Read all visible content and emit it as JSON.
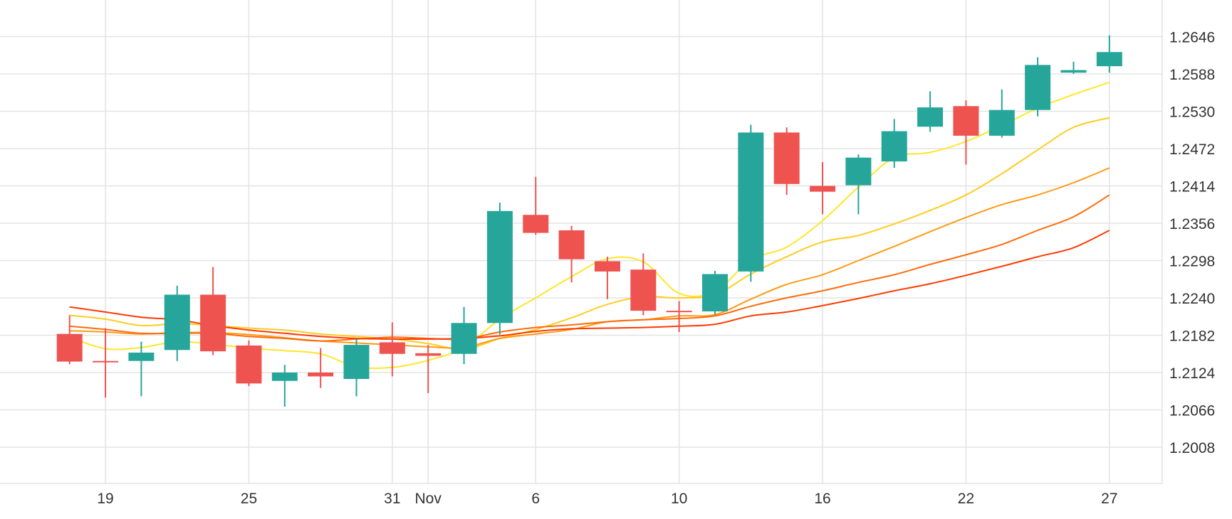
{
  "chart_data": {
    "type": "candlestick",
    "title": "",
    "xlabel": "",
    "ylabel": "",
    "ylim": [
      1.195,
      1.27
    ],
    "grid": true,
    "y_ticks": [
      "1.2646",
      "1.2588",
      "1.2530",
      "1.2472",
      "1.2414",
      "1.2356",
      "1.2298",
      "1.2240",
      "1.2182",
      "1.2124",
      "1.2066",
      "1.2008"
    ],
    "x_ticks": [
      {
        "label": "19",
        "index": 1
      },
      {
        "label": "25",
        "index": 5
      },
      {
        "label": "31",
        "index": 9
      },
      {
        "label": "Nov",
        "index": 10
      },
      {
        "label": "6",
        "index": 13
      },
      {
        "label": "10",
        "index": 17
      },
      {
        "label": "16",
        "index": 21
      },
      {
        "label": "22",
        "index": 25
      },
      {
        "label": "27",
        "index": 29
      }
    ],
    "candles": [
      {
        "o": 1.2184,
        "h": 1.2213,
        "l": 1.2137,
        "c": 1.2141
      },
      {
        "o": 1.2142,
        "h": 1.2193,
        "l": 1.2085,
        "c": 1.214
      },
      {
        "o": 1.2142,
        "h": 1.2172,
        "l": 1.2087,
        "c": 1.2155
      },
      {
        "o": 1.2159,
        "h": 1.2259,
        "l": 1.2142,
        "c": 1.2245
      },
      {
        "o": 1.2245,
        "h": 1.2288,
        "l": 1.2151,
        "c": 1.2157
      },
      {
        "o": 1.2166,
        "h": 1.2174,
        "l": 1.2103,
        "c": 1.2107
      },
      {
        "o": 1.2111,
        "h": 1.2136,
        "l": 1.2071,
        "c": 1.2124
      },
      {
        "o": 1.2124,
        "h": 1.2162,
        "l": 1.21,
        "c": 1.2118
      },
      {
        "o": 1.2114,
        "h": 1.2177,
        "l": 1.2087,
        "c": 1.2167
      },
      {
        "o": 1.2171,
        "h": 1.2202,
        "l": 1.2118,
        "c": 1.2153
      },
      {
        "o": 1.2154,
        "h": 1.2167,
        "l": 1.2092,
        "c": 1.215
      },
      {
        "o": 1.2153,
        "h": 1.2226,
        "l": 1.2137,
        "c": 1.2201
      },
      {
        "o": 1.2201,
        "h": 1.2388,
        "l": 1.2183,
        "c": 1.2375
      },
      {
        "o": 1.2369,
        "h": 1.2428,
        "l": 1.2338,
        "c": 1.2341
      },
      {
        "o": 1.2345,
        "h": 1.2352,
        "l": 1.2264,
        "c": 1.23
      },
      {
        "o": 1.2297,
        "h": 1.2304,
        "l": 1.2238,
        "c": 1.2281
      },
      {
        "o": 1.2284,
        "h": 1.2309,
        "l": 1.2213,
        "c": 1.222
      },
      {
        "o": 1.222,
        "h": 1.2235,
        "l": 1.2187,
        "c": 1.2218
      },
      {
        "o": 1.2219,
        "h": 1.2282,
        "l": 1.2214,
        "c": 1.2277
      },
      {
        "o": 1.2281,
        "h": 1.2509,
        "l": 1.2265,
        "c": 1.2497
      },
      {
        "o": 1.2497,
        "h": 1.2505,
        "l": 1.24,
        "c": 1.2417
      },
      {
        "o": 1.2414,
        "h": 1.2451,
        "l": 1.237,
        "c": 1.2405
      },
      {
        "o": 1.2415,
        "h": 1.2463,
        "l": 1.237,
        "c": 1.2458
      },
      {
        "o": 1.2452,
        "h": 1.2518,
        "l": 1.2442,
        "c": 1.2499
      },
      {
        "o": 1.2506,
        "h": 1.2561,
        "l": 1.2498,
        "c": 1.2536
      },
      {
        "o": 1.2538,
        "h": 1.2547,
        "l": 1.2447,
        "c": 1.2492
      },
      {
        "o": 1.2492,
        "h": 1.2564,
        "l": 1.2489,
        "c": 1.2532
      },
      {
        "o": 1.2532,
        "h": 1.2614,
        "l": 1.2522,
        "c": 1.2602
      },
      {
        "o": 1.259,
        "h": 1.2607,
        "l": 1.2588,
        "c": 1.2594
      },
      {
        "o": 1.26,
        "h": 1.2648,
        "l": 1.259,
        "c": 1.2622
      }
    ],
    "moving_averages": [
      {
        "color": "#ffe629",
        "values": [
          1.2179,
          1.2161,
          1.2163,
          1.2172,
          1.2168,
          1.2162,
          1.2158,
          1.2153,
          1.2133,
          1.2132,
          1.2143,
          1.2163,
          1.2207,
          1.224,
          1.2273,
          1.2301,
          1.2296,
          1.2247,
          1.225,
          1.2299,
          1.2319,
          1.236,
          1.2412,
          1.2458,
          1.2466,
          1.2483,
          1.2508,
          1.2535,
          1.2556,
          1.2575
        ]
      },
      {
        "color": "#ffcc1f",
        "values": [
          1.2213,
          1.2207,
          1.2197,
          1.22,
          1.2197,
          1.2193,
          1.219,
          1.2184,
          1.218,
          1.2176,
          1.2169,
          1.216,
          1.2177,
          1.2191,
          1.2209,
          1.223,
          1.2242,
          1.224,
          1.2245,
          1.2277,
          1.2304,
          1.2327,
          1.2337,
          1.2355,
          1.2376,
          1.24,
          1.2433,
          1.247,
          1.2505,
          1.252
        ]
      },
      {
        "color": "#ff9a14",
        "values": [
          1.2189,
          1.2187,
          1.2184,
          1.2186,
          1.2186,
          1.2183,
          1.2178,
          1.2173,
          1.217,
          1.2167,
          1.2164,
          1.2163,
          1.2177,
          1.2184,
          1.2191,
          1.2203,
          1.2206,
          1.2212,
          1.2214,
          1.2238,
          1.2261,
          1.2276,
          1.2298,
          1.232,
          1.2343,
          1.2365,
          1.2385,
          1.24,
          1.2419,
          1.2442
        ]
      },
      {
        "color": "#ff6b0a",
        "values": [
          1.2196,
          1.2191,
          1.2185,
          1.2185,
          1.2185,
          1.218,
          1.2177,
          1.2173,
          1.2176,
          1.2179,
          1.2177,
          1.2176,
          1.2187,
          1.2194,
          1.2198,
          1.2203,
          1.2206,
          1.2208,
          1.2212,
          1.2227,
          1.224,
          1.2251,
          1.2264,
          1.2276,
          1.2292,
          1.2307,
          1.2323,
          1.2345,
          1.2366,
          1.24
        ]
      },
      {
        "color": "#ff3a00",
        "values": [
          1.2226,
          1.2218,
          1.221,
          1.2206,
          1.2197,
          1.219,
          1.2185,
          1.218,
          1.2177,
          1.2176,
          1.2176,
          1.2177,
          1.2181,
          1.2188,
          1.2192,
          1.2193,
          1.2194,
          1.2196,
          1.2199,
          1.2212,
          1.2218,
          1.2228,
          1.2239,
          1.2251,
          1.2262,
          1.2275,
          1.2289,
          1.2304,
          1.2318,
          1.2345
        ]
      }
    ],
    "colors": {
      "up": "#26a69a",
      "down": "#ef5350",
      "grid": "#e3e3e3",
      "text": "#333333"
    }
  }
}
